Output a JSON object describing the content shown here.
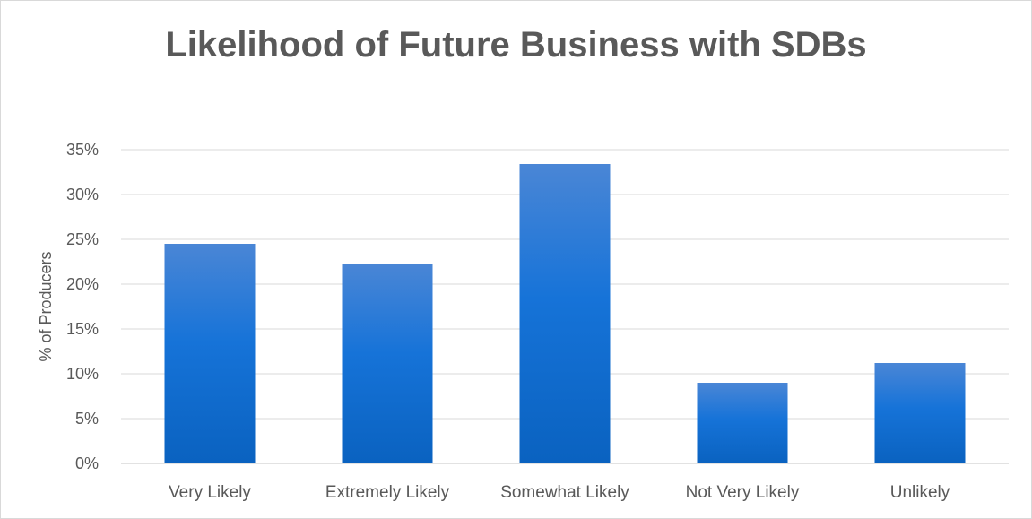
{
  "chart_data": {
    "type": "bar",
    "title": "Likelihood of Future Business with SDBs",
    "xlabel": "",
    "ylabel": "% of Producers",
    "categories": [
      "Very Likely",
      "Extremely Likely",
      "Somewhat Likely",
      "Not Very Likely",
      "Unlikely"
    ],
    "values": [
      24.5,
      22.3,
      33.4,
      9.0,
      11.2
    ],
    "ylim": [
      0,
      35
    ],
    "yticks": [
      0,
      5,
      10,
      15,
      20,
      25,
      30,
      35
    ],
    "ytick_labels": [
      "0%",
      "5%",
      "10%",
      "15%",
      "20%",
      "25%",
      "30%",
      "35%"
    ],
    "grid": true,
    "legend": "none",
    "colors": {
      "bar_top": "#4a86d6",
      "bar_mid": "#1673d8",
      "bar_bottom": "#0a62c0",
      "gridline": "#d9d9d9",
      "text": "#595959"
    }
  }
}
